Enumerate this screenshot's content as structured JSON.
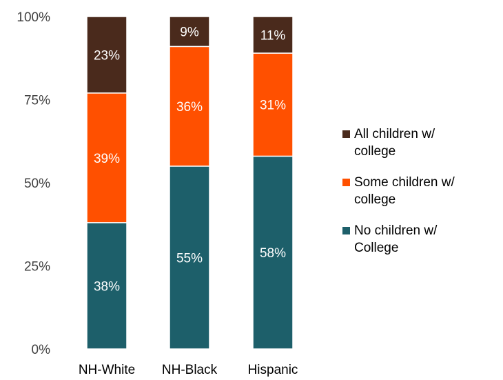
{
  "chart_data": {
    "type": "bar",
    "stacked": true,
    "categories": [
      "NH-White",
      "NH-Black",
      "Hispanic"
    ],
    "ylim": [
      0,
      100
    ],
    "yticks": [
      "0%",
      "25%",
      "50%",
      "75%",
      "100%"
    ],
    "ytick_values": [
      0,
      25,
      50,
      75,
      100
    ],
    "series": [
      {
        "name": "No children w/\nCollege",
        "values": [
          38,
          55,
          58
        ],
        "labels": [
          "38%",
          "55%",
          "58%"
        ],
        "color": "#1d5f6a"
      },
      {
        "name": "Some children w/\ncollege",
        "values": [
          39,
          36,
          31
        ],
        "labels": [
          "39%",
          "36%",
          "31%"
        ],
        "color": "#ff5000"
      },
      {
        "name": "All children w/\ncollege",
        "values": [
          23,
          9,
          11
        ],
        "labels": [
          "23%",
          "9%",
          "11%"
        ],
        "color": "#4a2a1c"
      }
    ],
    "legend_order": [
      2,
      1,
      0
    ],
    "legend_position": "right",
    "grid": false
  }
}
